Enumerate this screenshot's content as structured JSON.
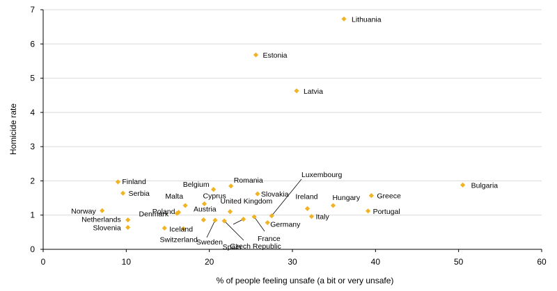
{
  "chart_data": {
    "type": "scatter",
    "title": "",
    "xlabel": "% of people feeling unsafe (a bit or very unsafe)",
    "ylabel": "Homicide rate",
    "xlim": [
      0,
      60
    ],
    "ylim": [
      0,
      7
    ],
    "xticks": [
      0,
      10,
      20,
      30,
      40,
      50,
      60
    ],
    "yticks": [
      0,
      1,
      2,
      3,
      4,
      5,
      6,
      7
    ],
    "grid": "horizontal",
    "marker_color": "#f0b323",
    "grid_color": "#d9d9d9",
    "points": [
      {
        "label": "Lithuania",
        "x": 36.2,
        "y": 6.73
      },
      {
        "label": "Estonia",
        "x": 25.6,
        "y": 5.68
      },
      {
        "label": "Latvia",
        "x": 30.5,
        "y": 4.63
      },
      {
        "label": "Bulgaria",
        "x": 50.5,
        "y": 1.88
      },
      {
        "label": "Romania",
        "x": 22.6,
        "y": 1.85
      },
      {
        "label": "Finland",
        "x": 9.0,
        "y": 1.97
      },
      {
        "label": "Belgium",
        "x": 20.5,
        "y": 1.75
      },
      {
        "label": "Serbia",
        "x": 9.6,
        "y": 1.64
      },
      {
        "label": "Slovakia",
        "x": 25.8,
        "y": 1.62
      },
      {
        "label": "Greece",
        "x": 39.5,
        "y": 1.57
      },
      {
        "label": "Cyprus",
        "x": 19.4,
        "y": 1.33
      },
      {
        "label": "Malta",
        "x": 17.1,
        "y": 1.28
      },
      {
        "label": "Hungary",
        "x": 34.9,
        "y": 1.28
      },
      {
        "label": "Poland",
        "x": 16.3,
        "y": 1.08
      },
      {
        "label": "Ireland",
        "x": 31.8,
        "y": 1.19
      },
      {
        "label": "Norway",
        "x": 7.1,
        "y": 1.13
      },
      {
        "label": "Portugal",
        "x": 39.1,
        "y": 1.12
      },
      {
        "label": "Denmark",
        "x": 16.1,
        "y": 1.05
      },
      {
        "label": "United Kingdom",
        "x": 22.5,
        "y": 1.1
      },
      {
        "label": "Luxembourg",
        "x": 27.5,
        "y": 0.98
      },
      {
        "label": "Italy",
        "x": 32.3,
        "y": 0.96
      },
      {
        "label": "Austria",
        "x": 19.3,
        "y": 0.86
      },
      {
        "label": "Netherlands",
        "x": 10.2,
        "y": 0.86
      },
      {
        "label": "Germany",
        "x": 27.0,
        "y": 0.78
      },
      {
        "label": "France",
        "x": 25.4,
        "y": 0.95
      },
      {
        "label": "Spain",
        "x": 24.1,
        "y": 0.88
      },
      {
        "label": "Sweden",
        "x": 20.7,
        "y": 0.85
      },
      {
        "label": "Czech Republic",
        "x": 21.8,
        "y": 0.83
      },
      {
        "label": "Slovenia",
        "x": 10.2,
        "y": 0.64
      },
      {
        "label": "Iceland",
        "x": 14.6,
        "y": 0.62
      },
      {
        "label": "Switzerland",
        "x": 16.9,
        "y": 0.6
      }
    ]
  }
}
